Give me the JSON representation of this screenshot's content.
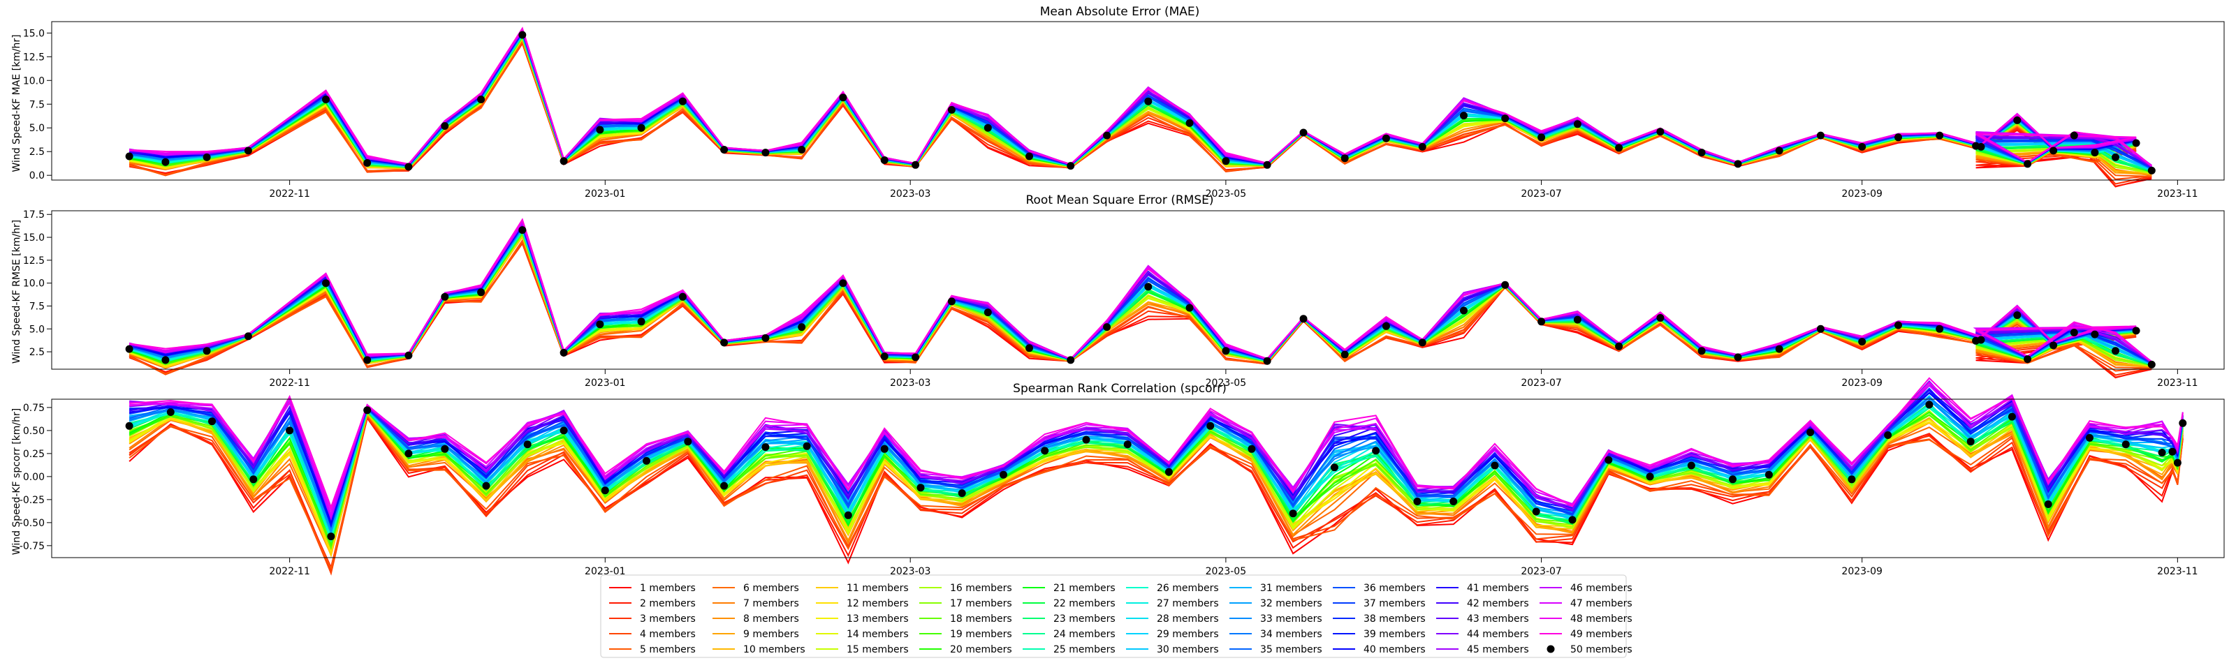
{
  "chart_data": [
    {
      "type": "line",
      "title": "Mean Absolute Error (MAE)",
      "ylabel": "Wind Speed-KF MAE [km/hr]",
      "ylim": [
        -0.5,
        16.2
      ],
      "yticks": [
        0.0,
        2.5,
        5.0,
        7.5,
        10.0,
        12.5,
        15.0
      ],
      "ytick_labels": [
        "0.0",
        "2.5",
        "5.0",
        "7.5",
        "10.0",
        "12.5",
        "15.0"
      ],
      "xticks": [
        "2022-11-01",
        "2023-01-01",
        "2023-03-01",
        "2023-05-01",
        "2023-07-01",
        "2023-09-01",
        "2023-11-01"
      ],
      "xtick_labels": [
        "2022-11",
        "2023-01",
        "2023-03",
        "2023-05",
        "2023-07",
        "2023-09",
        "2023-11"
      ],
      "grid": false,
      "ensemble_mean": [
        2.0,
        1.4,
        1.9,
        2.6,
        8.0,
        1.3,
        0.9,
        5.2,
        8.0,
        14.8,
        1.5,
        4.8,
        5.0,
        7.8,
        2.7,
        2.4,
        2.7,
        8.2,
        1.6,
        1.1,
        6.9,
        5.0,
        2.0,
        1.0,
        4.2,
        7.8,
        5.5,
        1.5,
        1.1,
        4.5,
        1.8,
        3.9,
        3.0,
        6.3,
        6.0,
        4.0,
        5.4,
        2.9,
        4.6,
        2.4,
        1.2,
        2.6,
        4.2,
        3.0,
        4.0,
        4.2,
        3.0,
        5.8,
        2.6,
        2.4,
        3.4,
        3.1,
        1.2,
        4.2,
        1.9,
        0.5
      ],
      "spread": [
        1.4,
        1.8,
        1.0,
        0.6,
        1.8,
        1.2,
        0.5,
        1.0,
        1.2,
        1.1,
        0.4,
        2.2,
        1.6,
        1.4,
        0.4,
        0.4,
        1.2,
        1.0,
        0.5,
        0.3,
        1.2,
        2.4,
        1.2,
        0.3,
        0.8,
        2.6,
        1.8,
        1.4,
        0.3,
        0.3,
        0.8,
        0.8,
        0.6,
        3.4,
        0.9,
        1.1,
        1.2,
        0.8,
        0.6,
        0.5,
        0.3,
        0.8,
        0.3,
        0.7,
        0.7,
        0.5,
        0.4,
        1.2,
        0.6,
        1.3,
        1.0,
        2.6,
        0.3,
        0.6,
        3.6,
        1.0
      ]
    },
    {
      "type": "line",
      "title": "Root Mean Square Error (RMSE)",
      "ylabel": "Wind Speed-KF RMSE [km/hr]",
      "ylim": [
        0.6,
        17.9
      ],
      "yticks": [
        2.5,
        5.0,
        7.5,
        10.0,
        12.5,
        15.0,
        17.5
      ],
      "ytick_labels": [
        "2.5",
        "5.0",
        "7.5",
        "10.0",
        "12.5",
        "15.0",
        "17.5"
      ],
      "xticks": [
        "2022-11-01",
        "2023-01-01",
        "2023-03-01",
        "2023-05-01",
        "2023-07-01",
        "2023-09-01",
        "2023-11-01"
      ],
      "xtick_labels": [
        "2022-11",
        "2023-01",
        "2023-03",
        "2023-05",
        "2023-07",
        "2023-09",
        "2023-11"
      ],
      "grid": false,
      "ensemble_mean": [
        2.8,
        1.6,
        2.6,
        4.2,
        10.0,
        1.6,
        2.1,
        8.5,
        9.0,
        15.8,
        2.4,
        5.5,
        5.8,
        8.5,
        3.5,
        4.0,
        5.2,
        10.0,
        2.0,
        1.9,
        8.0,
        6.8,
        2.9,
        1.6,
        5.2,
        9.6,
        7.3,
        2.6,
        1.5,
        6.1,
        2.2,
        5.3,
        3.5,
        7.0,
        9.8,
        5.8,
        6.0,
        3.1,
        6.2,
        2.6,
        1.9,
        2.8,
        5.0,
        3.6,
        5.4,
        5.0,
        3.8,
        6.5,
        3.2,
        4.4,
        4.8,
        3.7,
        1.7,
        4.6,
        2.6,
        1.1
      ],
      "spread": [
        1.2,
        2.0,
        1.2,
        0.4,
        2.0,
        1.0,
        0.4,
        0.8,
        1.4,
        1.8,
        0.4,
        2.2,
        2.2,
        1.2,
        0.4,
        0.6,
        2.2,
        1.4,
        0.8,
        0.8,
        1.0,
        1.8,
        1.4,
        0.2,
        1.2,
        4.0,
        1.6,
        1.2,
        0.4,
        0.3,
        1.0,
        1.6,
        0.6,
        3.6,
        0.4,
        0.4,
        1.6,
        0.7,
        1.0,
        0.8,
        0.5,
        1.2,
        0.4,
        1.0,
        0.8,
        1.2,
        0.6,
        1.8,
        0.6,
        1.0,
        0.8,
        2.4,
        0.6,
        1.8,
        3.4,
        0.6
      ]
    },
    {
      "type": "line",
      "title": "Spearman Rank Correlation (spcorr)",
      "ylabel": "Wind Speed-KF spcorr [km/hr]",
      "ylim": [
        -0.88,
        0.84
      ],
      "yticks": [
        -0.75,
        -0.5,
        -0.25,
        0.0,
        0.25,
        0.5,
        0.75
      ],
      "ytick_labels": [
        "-0.75",
        "-0.50",
        "-0.25",
        "0.00",
        "0.25",
        "0.50",
        "0.75"
      ],
      "xticks": [
        "2022-11-01",
        "2023-01-01",
        "2023-03-01",
        "2023-05-01",
        "2023-07-01",
        "2023-09-01",
        "2023-11-01"
      ],
      "xtick_labels": [
        "2022-11",
        "2023-01",
        "2023-03",
        "2023-05",
        "2023-07",
        "2023-09",
        "2023-11"
      ],
      "grid": false,
      "ensemble_mean": [
        0.55,
        0.7,
        0.6,
        -0.03,
        0.5,
        -0.65,
        0.72,
        0.25,
        0.3,
        -0.1,
        0.35,
        0.5,
        -0.15,
        0.17,
        0.38,
        -0.1,
        0.32,
        0.33,
        -0.42,
        0.3,
        -0.12,
        -0.18,
        0.02,
        0.28,
        0.4,
        0.35,
        0.05,
        0.55,
        0.3,
        -0.4,
        0.1,
        0.28,
        -0.27,
        -0.27,
        0.12,
        -0.38,
        -0.47,
        0.18,
        0.0,
        0.12,
        -0.03,
        0.02,
        0.48,
        -0.03,
        0.45,
        0.78,
        0.38,
        0.65,
        -0.3,
        0.42,
        0.35,
        0.26,
        0.27,
        0.15,
        0.58
      ],
      "spread": [
        0.5,
        0.2,
        0.3,
        0.4,
        0.7,
        0.5,
        0.1,
        0.3,
        0.3,
        0.4,
        0.4,
        0.4,
        0.3,
        0.3,
        0.2,
        0.3,
        0.5,
        0.4,
        0.6,
        0.4,
        0.3,
        0.3,
        0.2,
        0.3,
        0.3,
        0.3,
        0.2,
        0.3,
        0.3,
        0.5,
        0.9,
        0.6,
        0.3,
        0.3,
        0.4,
        0.4,
        0.3,
        0.2,
        0.2,
        0.3,
        0.3,
        0.3,
        0.2,
        0.3,
        0.2,
        0.5,
        0.4,
        0.4,
        0.5,
        0.3,
        0.3,
        0.6,
        0.3,
        0.3,
        0.2
      ]
    }
  ],
  "dates": {
    "mae_rmse": [
      "2022-10-01",
      "2022-10-08",
      "2022-10-16",
      "2022-10-24",
      "2022-11-08",
      "2022-11-16",
      "2022-11-24",
      "2022-12-01",
      "2022-12-08",
      "2022-12-16",
      "2022-12-24",
      "2022-12-31",
      "2023-01-08",
      "2023-01-16",
      "2023-01-24",
      "2023-02-01",
      "2023-02-08",
      "2023-02-16",
      "2023-02-24",
      "2023-03-02",
      "2023-03-09",
      "2023-03-16",
      "2023-03-24",
      "2023-04-01",
      "2023-04-08",
      "2023-04-16",
      "2023-04-24",
      "2023-05-01",
      "2023-05-09",
      "2023-05-16",
      "2023-05-24",
      "2023-06-01",
      "2023-06-08",
      "2023-06-16",
      "2023-06-24",
      "2023-07-01",
      "2023-07-08",
      "2023-07-16",
      "2023-07-24",
      "2023-08-01",
      "2023-08-08",
      "2023-08-16",
      "2023-08-24",
      "2023-09-01",
      "2023-09-08",
      "2023-09-16",
      "2023-09-24",
      "2023-10-01",
      "2023-10-08",
      "2023-10-16",
      "2023-10-24",
      "2023-09-23",
      "2023-10-03",
      "2023-10-12",
      "2023-10-20",
      "2023-10-27"
    ],
    "spcorr": [
      "2022-10-01",
      "2022-10-09",
      "2022-10-17",
      "2022-10-25",
      "2022-11-01",
      "2022-11-09",
      "2022-11-16",
      "2022-11-24",
      "2022-12-01",
      "2022-12-09",
      "2022-12-17",
      "2022-12-24",
      "2023-01-01",
      "2023-01-09",
      "2023-01-17",
      "2023-01-24",
      "2023-02-01",
      "2023-02-09",
      "2023-02-17",
      "2023-02-24",
      "2023-03-03",
      "2023-03-11",
      "2023-03-19",
      "2023-03-27",
      "2023-04-04",
      "2023-04-12",
      "2023-04-20",
      "2023-04-28",
      "2023-05-06",
      "2023-05-14",
      "2023-05-22",
      "2023-05-30",
      "2023-06-07",
      "2023-06-14",
      "2023-06-22",
      "2023-06-30",
      "2023-07-07",
      "2023-07-14",
      "2023-07-22",
      "2023-07-30",
      "2023-08-07",
      "2023-08-14",
      "2023-08-22",
      "2023-08-30",
      "2023-09-06",
      "2023-09-14",
      "2023-09-22",
      "2023-09-30",
      "2023-10-07",
      "2023-10-15",
      "2023-10-22",
      "2023-10-29",
      "2023-10-31",
      "2023-11-01",
      "2023-11-02"
    ]
  },
  "legend": {
    "placement": "bottom-center",
    "columns": 10,
    "entries": [
      "1 members",
      "2 members",
      "3 members",
      "4 members",
      "5 members",
      "6 members",
      "7 members",
      "8 members",
      "9 members",
      "10 members",
      "11 members",
      "12 members",
      "13 members",
      "14 members",
      "15 members",
      "16 members",
      "17 members",
      "18 members",
      "19 members",
      "20 members",
      "21 members",
      "22 members",
      "23 members",
      "24 members",
      "25 members",
      "26 members",
      "27 members",
      "28 members",
      "29 members",
      "30 members",
      "31 members",
      "32 members",
      "33 members",
      "34 members",
      "35 members",
      "36 members",
      "37 members",
      "38 members",
      "39 members",
      "40 members",
      "41 members",
      "42 members",
      "43 members",
      "44 members",
      "45 members",
      "46 members",
      "47 members",
      "48 members",
      "49 members",
      "50 members"
    ],
    "colors": [
      "#ff0000",
      "#ff1800",
      "#ff3000",
      "#ff4400",
      "#ff5800",
      "#ff6a00",
      "#ff7c00",
      "#ff9000",
      "#ffa400",
      "#ffb800",
      "#ffcc00",
      "#ffe000",
      "#f4f000",
      "#e0f800",
      "#c8ff00",
      "#a8ff00",
      "#88ff00",
      "#66ff00",
      "#44ff00",
      "#22ff00",
      "#00ff10",
      "#00ff40",
      "#00ff70",
      "#00ff90",
      "#00ffb0",
      "#00ffcc",
      "#00f0e0",
      "#00e0f0",
      "#00d4ff",
      "#00c8ff",
      "#00b4ff",
      "#00a0ff",
      "#008cff",
      "#0078ff",
      "#0064ff",
      "#0050ff",
      "#003cff",
      "#0028ff",
      "#0014ff",
      "#0000ff",
      "#2000ff",
      "#4000ff",
      "#6000ff",
      "#8000ff",
      "#a000ff",
      "#c000ff",
      "#d800ff",
      "#ec00f0",
      "#ff00e0",
      "#000000"
    ],
    "last_entry_marker": "dot"
  }
}
